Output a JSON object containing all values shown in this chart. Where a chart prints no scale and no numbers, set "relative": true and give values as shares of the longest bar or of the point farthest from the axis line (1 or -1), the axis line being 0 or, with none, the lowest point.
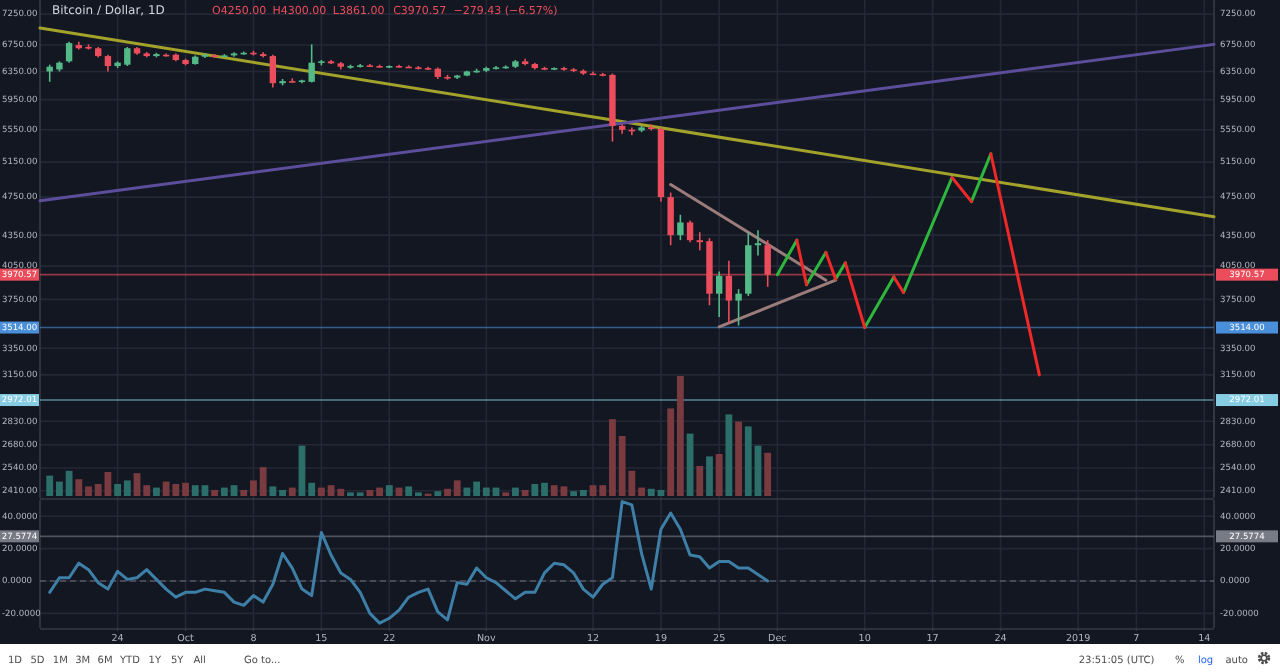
{
  "chart_data": [
    {
      "type": "candlestick",
      "title": "Bitcoin / Dollar, 1D",
      "annotations": [
        "O4250.00",
        "H4300.00",
        "L3861.00",
        "C3970.57",
        "−279.43 (−6.57%)"
      ],
      "log": true,
      "grid": true,
      "tick_labels": "y",
      "xlim": [
        "2018-09-16",
        "2019-01-15"
      ],
      "xticks": [
        {
          "value": "2018-09-24",
          "label": null
        },
        {
          "value": "2018-10-01",
          "label": null
        },
        {
          "value": "2018-10-08",
          "label": null
        },
        {
          "value": "2018-10-15",
          "label": null
        },
        {
          "value": "2018-10-22",
          "label": null
        },
        {
          "value": "2018-11-01",
          "label": null
        },
        {
          "value": "2018-11-12",
          "label": null
        },
        {
          "value": "2018-11-19",
          "label": null
        },
        {
          "value": "2018-11-25",
          "label": null
        },
        {
          "value": "2018-12-01",
          "label": null
        },
        {
          "value": "2018-12-10",
          "label": null
        },
        {
          "value": "2018-12-17",
          "label": null
        },
        {
          "value": "2018-12-24",
          "label": null
        },
        {
          "value": "2019-01-01",
          "label": null
        },
        {
          "value": "2019-01-07",
          "label": null
        },
        {
          "value": "2019-01-14",
          "label": null
        }
      ],
      "ylim": [
        2370,
        7490
      ],
      "yticks": [
        {
          "value": 7250,
          "label": "7250.00"
        },
        {
          "value": 6750,
          "label": "6750.00"
        },
        {
          "value": 6350,
          "label": "6350.00"
        },
        {
          "value": 5950,
          "label": "5950.00"
        },
        {
          "value": 5550,
          "label": "5550.00"
        },
        {
          "value": 5150,
          "label": "5150.00"
        },
        {
          "value": 4750,
          "label": "4750.00"
        },
        {
          "value": 4350,
          "label": "4350.00"
        },
        {
          "value": 4050,
          "label": "4050.00"
        },
        {
          "value": 3750,
          "label": "3750.00"
        },
        {
          "value": 3350,
          "label": "3350.00"
        },
        {
          "value": 3150,
          "label": "3150.00"
        },
        {
          "value": 2830,
          "label": "2830.00"
        },
        {
          "value": 2680,
          "label": "2680.00"
        },
        {
          "value": 2540,
          "label": "2540.00"
        },
        {
          "value": 2410,
          "label": "2410.00"
        }
      ],
      "ref_lines": [
        {
          "axis": "y",
          "value": 3970.57,
          "label": "3970.57",
          "color": "#eb4d5c"
        },
        {
          "axis": "y",
          "value": 3514,
          "label": "3514.00",
          "color": "#4a8fd9"
        },
        {
          "axis": "y",
          "value": 2972.01,
          "label": "2972.01",
          "color": "#86cde3"
        }
      ],
      "x": [
        "2018-09-17",
        "2018-09-18",
        "2018-09-19",
        "2018-09-20",
        "2018-09-21",
        "2018-09-22",
        "2018-09-23",
        "2018-09-24",
        "2018-09-25",
        "2018-09-26",
        "2018-09-27",
        "2018-09-28",
        "2018-09-29",
        "2018-09-30",
        "2018-10-01",
        "2018-10-02",
        "2018-10-03",
        "2018-10-04",
        "2018-10-05",
        "2018-10-06",
        "2018-10-07",
        "2018-10-08",
        "2018-10-09",
        "2018-10-10",
        "2018-10-11",
        "2018-10-12",
        "2018-10-13",
        "2018-10-14",
        "2018-10-15",
        "2018-10-16",
        "2018-10-17",
        "2018-10-18",
        "2018-10-19",
        "2018-10-20",
        "2018-10-21",
        "2018-10-22",
        "2018-10-23",
        "2018-10-24",
        "2018-10-25",
        "2018-10-26",
        "2018-10-27",
        "2018-10-28",
        "2018-10-29",
        "2018-10-30",
        "2018-10-31",
        "2018-11-01",
        "2018-11-02",
        "2018-11-03",
        "2018-11-04",
        "2018-11-05",
        "2018-11-06",
        "2018-11-07",
        "2018-11-08",
        "2018-11-09",
        "2018-11-10",
        "2018-11-11",
        "2018-11-12",
        "2018-11-13",
        "2018-11-14",
        "2018-11-15",
        "2018-11-16",
        "2018-11-17",
        "2018-11-18",
        "2018-11-19",
        "2018-11-20",
        "2018-11-21",
        "2018-11-22",
        "2018-11-23",
        "2018-11-24",
        "2018-11-25",
        "2018-11-26",
        "2018-11-27",
        "2018-11-28",
        "2018-11-29",
        "2018-11-30"
      ],
      "ohlc": [
        [
          6350,
          6450,
          6200,
          6420
        ],
        [
          6380,
          6500,
          6350,
          6480
        ],
        [
          6500,
          6800,
          6480,
          6780
        ],
        [
          6750,
          6800,
          6680,
          6700
        ],
        [
          6720,
          6760,
          6680,
          6700
        ],
        [
          6700,
          6720,
          6560,
          6580
        ],
        [
          6580,
          6600,
          6350,
          6430
        ],
        [
          6430,
          6500,
          6400,
          6480
        ],
        [
          6450,
          6720,
          6430,
          6700
        ],
        [
          6700,
          6720,
          6600,
          6620
        ],
        [
          6620,
          6640,
          6560,
          6580
        ],
        [
          6580,
          6630,
          6560,
          6610
        ],
        [
          6600,
          6620,
          6570,
          6590
        ],
        [
          6600,
          6620,
          6500,
          6520
        ],
        [
          6520,
          6540,
          6440,
          6460
        ],
        [
          6460,
          6590,
          6450,
          6570
        ],
        [
          6570,
          6620,
          6550,
          6600
        ],
        [
          6590,
          6610,
          6550,
          6570
        ],
        [
          6570,
          6610,
          6560,
          6590
        ],
        [
          6590,
          6640,
          6570,
          6620
        ],
        [
          6620,
          6650,
          6600,
          6630
        ],
        [
          6630,
          6660,
          6590,
          6610
        ],
        [
          6610,
          6640,
          6560,
          6580
        ],
        [
          6580,
          6600,
          6120,
          6180
        ],
        [
          6180,
          6240,
          6150,
          6210
        ],
        [
          6210,
          6250,
          6190,
          6200
        ],
        [
          6200,
          6230,
          6180,
          6220
        ],
        [
          6200,
          6760,
          6190,
          6480
        ],
        [
          6480,
          6520,
          6440,
          6500
        ],
        [
          6500,
          6520,
          6460,
          6470
        ],
        [
          6470,
          6490,
          6380,
          6420
        ],
        [
          6420,
          6450,
          6390,
          6430
        ],
        [
          6430,
          6460,
          6410,
          6440
        ],
        [
          6440,
          6460,
          6420,
          6430
        ],
        [
          6430,
          6450,
          6410,
          6420
        ],
        [
          6420,
          6440,
          6400,
          6430
        ],
        [
          6430,
          6450,
          6410,
          6420
        ],
        [
          6420,
          6440,
          6400,
          6410
        ],
        [
          6410,
          6430,
          6380,
          6400
        ],
        [
          6400,
          6420,
          6370,
          6390
        ],
        [
          6390,
          6410,
          6240,
          6270
        ],
        [
          6270,
          6300,
          6230,
          6260
        ],
        [
          6260,
          6300,
          6240,
          6290
        ],
        [
          6290,
          6360,
          6280,
          6350
        ],
        [
          6350,
          6390,
          6330,
          6360
        ],
        [
          6360,
          6420,
          6340,
          6400
        ],
        [
          6400,
          6430,
          6380,
          6410
        ],
        [
          6410,
          6440,
          6390,
          6420
        ],
        [
          6420,
          6520,
          6400,
          6500
        ],
        [
          6500,
          6540,
          6440,
          6460
        ],
        [
          6460,
          6480,
          6380,
          6400
        ],
        [
          6400,
          6420,
          6370,
          6390
        ],
        [
          6390,
          6410,
          6370,
          6400
        ],
        [
          6400,
          6420,
          6360,
          6380
        ],
        [
          6380,
          6400,
          6340,
          6360
        ],
        [
          6360,
          6380,
          6300,
          6320
        ],
        [
          6320,
          6350,
          6300,
          6310
        ],
        [
          6310,
          6330,
          6280,
          6300
        ],
        [
          6300,
          6320,
          5400,
          5600
        ],
        [
          5600,
          5620,
          5500,
          5550
        ],
        [
          5550,
          5580,
          5480,
          5540
        ],
        [
          5540,
          5600,
          5520,
          5580
        ],
        [
          5580,
          5620,
          5540,
          5560
        ],
        [
          5560,
          5580,
          4700,
          4750
        ],
        [
          4750,
          4800,
          4250,
          4350
        ],
        [
          4350,
          4560,
          4300,
          4480
        ],
        [
          4480,
          4500,
          4280,
          4300
        ],
        [
          4300,
          4380,
          4200,
          4280
        ],
        [
          4290,
          4320,
          3700,
          3800
        ],
        [
          3800,
          4000,
          3600,
          3960
        ],
        [
          3960,
          4100,
          3550,
          3740
        ],
        [
          3740,
          3840,
          3530,
          3800
        ],
        [
          3800,
          4380,
          3780,
          4250
        ],
        [
          4250,
          4400,
          4150,
          4270
        ],
        [
          4250,
          4300,
          3861,
          3970.57
        ]
      ],
      "colors": [
        "#53b987",
        "#53b987",
        "#53b987",
        "#eb4d5c",
        "#eb4d5c",
        "#eb4d5c",
        "#eb4d5c",
        "#53b987",
        "#53b987",
        "#eb4d5c",
        "#eb4d5c",
        "#53b987",
        "#eb4d5c",
        "#eb4d5c",
        "#eb4d5c",
        "#53b987",
        "#53b987",
        "#eb4d5c",
        "#53b987",
        "#53b987",
        "#53b987",
        "#eb4d5c",
        "#eb4d5c",
        "#eb4d5c",
        "#53b987",
        "#eb4d5c",
        "#53b987",
        "#53b987",
        "#53b987",
        "#eb4d5c",
        "#eb4d5c",
        "#53b987",
        "#53b987",
        "#eb4d5c",
        "#eb4d5c",
        "#53b987",
        "#eb4d5c",
        "#eb4d5c",
        "#eb4d5c",
        "#eb4d5c",
        "#eb4d5c",
        "#eb4d5c",
        "#53b987",
        "#53b987",
        "#53b987",
        "#53b987",
        "#53b987",
        "#53b987",
        "#53b987",
        "#eb4d5c",
        "#eb4d5c",
        "#eb4d5c",
        "#53b987",
        "#eb4d5c",
        "#eb4d5c",
        "#eb4d5c",
        "#eb4d5c",
        "#eb4d5c",
        "#eb4d5c",
        "#eb4d5c",
        "#eb4d5c",
        "#53b987",
        "#eb4d5c",
        "#eb4d5c",
        "#eb4d5c",
        "#53b987",
        "#eb4d5c",
        "#eb4d5c",
        "#eb4d5c",
        "#53b987",
        "#eb4d5c",
        "#53b987",
        "#53b987",
        "#53b987",
        "#eb4d5c"
      ],
      "series": [
        {
          "type": "line",
          "color": "#a3a32c",
          "x": [
            "2018-09-16",
            "2019-01-15"
          ],
          "values": [
            7020,
            4540
          ]
        },
        {
          "type": "line",
          "color": "#5d4e9c",
          "x": [
            "2018-09-16",
            "2019-01-15"
          ],
          "values": [
            4710,
            6760
          ]
        },
        {
          "type": "line",
          "color": "#9c7b7b",
          "x": [
            "2018-11-20",
            "2018-12-06"
          ],
          "values": [
            4890,
            3920
          ]
        },
        {
          "type": "line",
          "color": "#9c7b7b",
          "x": [
            "2018-11-25",
            "2018-12-07"
          ],
          "values": [
            3520,
            3920
          ]
        },
        {
          "type": "line",
          "color": "#2db83d",
          "x": [
            "2018-12-01",
            "2018-12-03",
            "2018-12-03T12:00",
            "2018-12-04",
            "2018-12-06",
            "2018-12-06T12:00",
            "2018-12-07",
            "2018-12-08",
            "2018-12-09",
            "2018-12-10",
            "2018-12-13",
            "2018-12-13T12:00",
            "2018-12-14",
            "2018-12-19",
            "2018-12-20",
            "2018-12-21",
            "2018-12-23"
          ],
          "values": [
            3970,
            4300,
            null,
            3880,
            4180,
            null,
            3930,
            4080,
            null,
            3514,
            3950,
            null,
            3810,
            4970,
            null,
            4700,
            5250
          ]
        },
        {
          "type": "line",
          "color": "#f02828",
          "x": [
            "2018-12-03",
            "2018-12-04",
            "2018-12-05",
            "2018-12-06",
            "2018-12-07",
            "2018-12-07T12:00",
            "2018-12-08",
            "2018-12-10",
            "2018-12-11",
            "2018-12-13",
            "2018-12-14",
            "2018-12-16",
            "2018-12-19",
            "2018-12-21",
            "2018-12-22",
            "2018-12-23",
            "2018-12-28"
          ],
          "values": [
            4300,
            3880,
            null,
            4180,
            3930,
            null,
            4080,
            3514,
            null,
            3950,
            3810,
            null,
            4970,
            4700,
            null,
            5250,
            3150
          ]
        }
      ]
    },
    {
      "type": "bar",
      "relative": true,
      "tick_labels": false,
      "xlim": [
        "2018-09-16",
        "2019-01-15"
      ],
      "x": [
        "2018-09-17",
        "2018-09-18",
        "2018-09-19",
        "2018-09-20",
        "2018-09-21",
        "2018-09-22",
        "2018-09-23",
        "2018-09-24",
        "2018-09-25",
        "2018-09-26",
        "2018-09-27",
        "2018-09-28",
        "2018-09-29",
        "2018-09-30",
        "2018-10-01",
        "2018-10-02",
        "2018-10-03",
        "2018-10-04",
        "2018-10-05",
        "2018-10-06",
        "2018-10-07",
        "2018-10-08",
        "2018-10-09",
        "2018-10-10",
        "2018-10-11",
        "2018-10-12",
        "2018-10-13",
        "2018-10-14",
        "2018-10-15",
        "2018-10-16",
        "2018-10-17",
        "2018-10-18",
        "2018-10-19",
        "2018-10-20",
        "2018-10-21",
        "2018-10-22",
        "2018-10-23",
        "2018-10-24",
        "2018-10-25",
        "2018-10-26",
        "2018-10-27",
        "2018-10-28",
        "2018-10-29",
        "2018-10-30",
        "2018-10-31",
        "2018-11-01",
        "2018-11-02",
        "2018-11-03",
        "2018-11-04",
        "2018-11-05",
        "2018-11-06",
        "2018-11-07",
        "2018-11-08",
        "2018-11-09",
        "2018-11-10",
        "2018-11-11",
        "2018-11-12",
        "2018-11-13",
        "2018-11-14",
        "2018-11-15",
        "2018-11-16",
        "2018-11-17",
        "2018-11-18",
        "2018-11-19",
        "2018-11-20",
        "2018-11-21",
        "2018-11-22",
        "2018-11-23",
        "2018-11-24",
        "2018-11-25",
        "2018-11-26",
        "2018-11-27",
        "2018-11-28",
        "2018-11-29",
        "2018-11-30"
      ],
      "values": [
        0.17,
        0.12,
        0.21,
        0.14,
        0.08,
        0.1,
        0.2,
        0.1,
        0.13,
        0.19,
        0.09,
        0.07,
        0.12,
        0.1,
        0.11,
        0.09,
        0.09,
        0.05,
        0.07,
        0.09,
        0.05,
        0.13,
        0.24,
        0.08,
        0.05,
        0.07,
        0.42,
        0.11,
        0.07,
        0.09,
        0.06,
        0.03,
        0.03,
        0.05,
        0.07,
        0.09,
        0.07,
        0.08,
        0.03,
        0.02,
        0.04,
        0.06,
        0.13,
        0.07,
        0.12,
        0.07,
        0.07,
        0.03,
        0.07,
        0.05,
        0.1,
        0.11,
        0.09,
        0.08,
        0.04,
        0.05,
        0.09,
        0.09,
        0.64,
        0.5,
        0.21,
        0.07,
        0.06,
        0.05,
        0.73,
        1,
        0.52,
        0.25,
        0.33,
        0.35,
        0.68,
        0.62,
        0.58,
        0.42,
        0.36
      ],
      "colors": [
        "#2c6e6a",
        "#2c6e6a",
        "#2c6e6a",
        "#7a3b40",
        "#7a3b40",
        "#7a3b40",
        "#7a3b40",
        "#2c6e6a",
        "#2c6e6a",
        "#7a3b40",
        "#7a3b40",
        "#2c6e6a",
        "#7a3b40",
        "#7a3b40",
        "#7a3b40",
        "#2c6e6a",
        "#2c6e6a",
        "#7a3b40",
        "#2c6e6a",
        "#2c6e6a",
        "#7a3b40",
        "#7a3b40",
        "#7a3b40",
        "#2c6e6a",
        "#2c6e6a",
        "#7a3b40",
        "#2c6e6a",
        "#2c6e6a",
        "#7a3b40",
        "#7a3b40",
        "#7a3b40",
        "#2c6e6a",
        "#2c6e6a",
        "#7a3b40",
        "#7a3b40",
        "#2c6e6a",
        "#7a3b40",
        "#2c6e6a",
        "#2c6e6a",
        "#7a3b40",
        "#2c6e6a",
        "#7a3b40",
        "#7a3b40",
        "#2c6e6a",
        "#2c6e6a",
        "#2c6e6a",
        "#2c6e6a",
        "#7a3b40",
        "#2c6e6a",
        "#7a3b40",
        "#2c6e6a",
        "#2c6e6a",
        "#7a3b40",
        "#7a3b40",
        "#2c6e6a",
        "#2c6e6a",
        "#7a3b40",
        "#7a3b40",
        "#7a3b40",
        "#7a3b40",
        "#7a3b40",
        "#7a3b40",
        "#2c6e6a",
        "#2c6e6a",
        "#7a3b40",
        "#7a3b40",
        "#2c6e6a",
        "#7a3b40",
        "#2c6e6a",
        "#7a3b40",
        "#2c6e6a",
        "#7a3b40",
        "#2c6e6a",
        "#2c6e6a",
        "#7a3b40"
      ]
    },
    {
      "type": "line",
      "grid": true,
      "annotations": [
        "1D",
        "5D",
        "1M",
        "3M",
        "6M",
        "YTD",
        "1Y",
        "5Y",
        "All",
        "Go to...",
        "23:51:05 (UTC)",
        "%",
        "log",
        "auto"
      ],
      "xlim": [
        "2018-09-16",
        "2019-01-15"
      ],
      "xticks": [
        {
          "value": "2018-09-24",
          "label": "24"
        },
        {
          "value": "2018-10-01",
          "label": "Oct"
        },
        {
          "value": "2018-10-08",
          "label": "8"
        },
        {
          "value": "2018-10-15",
          "label": "15"
        },
        {
          "value": "2018-10-22",
          "label": "22"
        },
        {
          "value": "2018-11-01",
          "label": "Nov"
        },
        {
          "value": "2018-11-12",
          "label": "12"
        },
        {
          "value": "2018-11-19",
          "label": "19"
        },
        {
          "value": "2018-11-25",
          "label": "25"
        },
        {
          "value": "2018-12-01",
          "label": "Dec"
        },
        {
          "value": "2018-12-10",
          "label": "10"
        },
        {
          "value": "2018-12-17",
          "label": "17"
        },
        {
          "value": "2018-12-24",
          "label": "24"
        },
        {
          "value": "2019-01-01",
          "label": "2019"
        },
        {
          "value": "2019-01-07",
          "label": "7"
        },
        {
          "value": "2019-01-14",
          "label": "14"
        }
      ],
      "ylim": [
        -29,
        50
      ],
      "yticks": [
        {
          "value": 40,
          "label": "40.0000"
        },
        {
          "value": 20,
          "label": "20.0000"
        },
        {
          "value": 0,
          "label": "0.0000"
        },
        {
          "value": -20,
          "label": "-20.0000"
        }
      ],
      "y2lim": [
        -29,
        50
      ],
      "y2ticks": [
        {
          "value": 40,
          "label": "40.0000"
        },
        {
          "value": 20,
          "label": "20.0000"
        },
        {
          "value": 0,
          "label": "0.0000"
        },
        {
          "value": -20,
          "label": "-20.0000"
        }
      ],
      "ref_lines": [
        {
          "axis": "y",
          "value": 0,
          "color": "#787b86",
          "line_style": "dashed"
        },
        {
          "axis": "y",
          "value": 27.5774,
          "label": "27.5774",
          "color": "#787b86"
        }
      ],
      "x": [
        "2018-09-17",
        "2018-09-18",
        "2018-09-19",
        "2018-09-20",
        "2018-09-21",
        "2018-09-22",
        "2018-09-23",
        "2018-09-24",
        "2018-09-25",
        "2018-09-26",
        "2018-09-27",
        "2018-09-28",
        "2018-09-29",
        "2018-09-30",
        "2018-10-01",
        "2018-10-02",
        "2018-10-03",
        "2018-10-04",
        "2018-10-05",
        "2018-10-06",
        "2018-10-07",
        "2018-10-08",
        "2018-10-09",
        "2018-10-10",
        "2018-10-11",
        "2018-10-12",
        "2018-10-13",
        "2018-10-14",
        "2018-10-15",
        "2018-10-16",
        "2018-10-17",
        "2018-10-18",
        "2018-10-19",
        "2018-10-20",
        "2018-10-21",
        "2018-10-22",
        "2018-10-23",
        "2018-10-24",
        "2018-10-25",
        "2018-10-26",
        "2018-10-27",
        "2018-10-28",
        "2018-10-29",
        "2018-10-30",
        "2018-10-31",
        "2018-11-01",
        "2018-11-02",
        "2018-11-03",
        "2018-11-04",
        "2018-11-05",
        "2018-11-06",
        "2018-11-07",
        "2018-11-08",
        "2018-11-09",
        "2018-11-10",
        "2018-11-11",
        "2018-11-12",
        "2018-11-13",
        "2018-11-14",
        "2018-11-15",
        "2018-11-16",
        "2018-11-17",
        "2018-11-18",
        "2018-11-19",
        "2018-11-20",
        "2018-11-21",
        "2018-11-22",
        "2018-11-23",
        "2018-11-24",
        "2018-11-25",
        "2018-11-26",
        "2018-11-27",
        "2018-11-28",
        "2018-11-29",
        "2018-11-30"
      ],
      "series": [
        {
          "color": "#3d7fa6",
          "values": [
            -7,
            2,
            2,
            11,
            7,
            -1,
            -5,
            6,
            1,
            2,
            7,
            1,
            -5,
            -10,
            -7,
            -7,
            -5,
            -6,
            -7,
            -13,
            -15,
            -9,
            -13,
            -2,
            17,
            8,
            -5,
            -9,
            30,
            16,
            5,
            1,
            -7,
            -20,
            -26,
            -23,
            -18,
            -10,
            -7,
            -5,
            -19,
            -24,
            -1,
            -2,
            8,
            2,
            -1,
            -6,
            -11,
            -7,
            -7,
            5,
            11,
            10,
            5,
            -5,
            -10,
            -2,
            2,
            49,
            47,
            17,
            -5,
            32,
            42,
            32,
            16,
            15,
            8,
            12,
            12,
            8,
            8,
            4,
            0
          ]
        }
      ]
    }
  ]
}
